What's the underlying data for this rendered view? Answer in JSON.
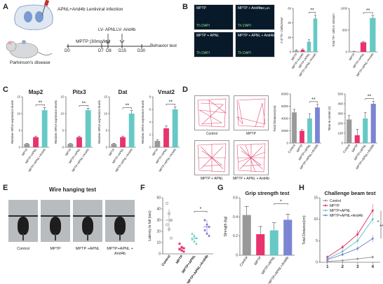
{
  "colors": {
    "control": "#999999",
    "mptp": "#e8336d",
    "apnl": "#66c9c5",
    "arid": "#7b85d4",
    "arid_point": "#8a72d0",
    "grid": "#dddddd"
  },
  "panelA": {
    "label": "A",
    "brain_text": "APNL+Arid4b Lentiviral infection",
    "dose": "MPTP (30mg/kg)",
    "lv_apnl": "LV- APNL",
    "lv_arid": "LV- Arid4b",
    "days": [
      "D0",
      "D7",
      "D8",
      "D15",
      "D30"
    ],
    "behavior": "Behavior test",
    "disease": "Parkinson's disease"
  },
  "panelB": {
    "label": "B",
    "images": [
      {
        "caption": "MPTP",
        "sub": "Th DAPI"
      },
      {
        "caption": "MPTP + Arid4b",
        "sub": "Th DAPI"
      },
      {
        "caption": "MPTP + APNL",
        "sub": "Th DAPI"
      },
      {
        "caption": "MPTP + APNL + Arid4b",
        "sub": "Th DAPI"
      }
    ],
    "scale": "50 μm"
  },
  "panelC": {
    "label": "C"
  },
  "panelD": {
    "label": "D",
    "tracks": [
      "Control",
      "MPTP",
      "MPTP + APNL",
      "MPTP + APNL + Arid4b"
    ]
  },
  "panelE": {
    "label": "E",
    "title": "Wire hanging test",
    "groups": [
      "Control",
      "MPTP",
      "MPTP +APNL",
      "MPTP+APNL + Arid4b"
    ]
  },
  "panelF": {
    "label": "F"
  },
  "panelG": {
    "label": "G"
  },
  "panelH": {
    "label": "H"
  },
  "chart_data": [
    {
      "id": "B1",
      "type": "bar",
      "ylabel": "# of Th+ Cells/Area²",
      "categories": [
        "MPTP",
        "MPTP+Arid4b",
        "MPTP+APNL",
        "MPTP+APNL+Arid4b"
      ],
      "values": [
        2,
        3,
        14,
        46
      ],
      "errors": [
        1,
        1,
        3,
        5
      ],
      "ylim": [
        0,
        60
      ],
      "yticks": [
        0,
        20,
        40,
        60
      ],
      "colors": [
        "#999999",
        "#e8336d",
        "#66c9c5",
        "#66c9c5"
      ],
      "sig": "**"
    },
    {
      "id": "B2",
      "type": "bar",
      "ylabel": "Total Th+ cells in striatum",
      "categories": [
        "MPTP",
        "MPTP+APNL",
        "MPTP+APNL+Arid4b"
      ],
      "values": [
        10,
        220,
        780
      ],
      "errors": [
        5,
        20,
        60
      ],
      "ylim": [
        0,
        1000
      ],
      "yticks": [
        0,
        500,
        1000
      ],
      "colors": [
        "#999999",
        "#e8336d",
        "#66c9c5"
      ],
      "sig": "**"
    },
    {
      "id": "C1",
      "type": "bar",
      "title": "Map2",
      "ylabel": "Relative mRNA expression levels",
      "categories": [
        "MPTP",
        "MPTP+APNL",
        "MPTP+APNL+Arid4b"
      ],
      "values": [
        1,
        3,
        11
      ],
      "errors": [
        0.2,
        0.3,
        0.8
      ],
      "ylim": [
        0,
        15
      ],
      "yticks": [
        0,
        5,
        10,
        15
      ],
      "colors": [
        "#999999",
        "#e8336d",
        "#66c9c5"
      ],
      "sig": "**"
    },
    {
      "id": "C2",
      "type": "bar",
      "title": "Pitx3",
      "ylabel": "Relative mRNA expression levels",
      "categories": [
        "MPTP",
        "MPTP+APNL",
        "MPTP+APNL+Arid4b"
      ],
      "values": [
        1,
        3,
        11
      ],
      "errors": [
        0.2,
        0.3,
        0.6
      ],
      "ylim": [
        0,
        15
      ],
      "yticks": [
        0,
        5,
        10,
        15
      ],
      "colors": [
        "#999999",
        "#e8336d",
        "#66c9c5"
      ],
      "sig": "**"
    },
    {
      "id": "C3",
      "type": "bar",
      "title": "Dat",
      "ylabel": "Relative mRNA expression levels",
      "categories": [
        "MPTP",
        "MPTP+APNL",
        "MPTP+APNL+Arid4b"
      ],
      "values": [
        1,
        3,
        10
      ],
      "errors": [
        0.2,
        0.3,
        0.9
      ],
      "ylim": [
        0,
        15
      ],
      "yticks": [
        0,
        5,
        10,
        15
      ],
      "colors": [
        "#999999",
        "#e8336d",
        "#66c9c5"
      ],
      "sig": "**"
    },
    {
      "id": "C4",
      "type": "bar",
      "title": "Vmat2",
      "ylabel": "Relative mRNA expression levels",
      "categories": [
        "MPTP",
        "MPTP+APNL",
        "MPTP+APNL+Arid4b"
      ],
      "values": [
        1,
        3,
        6
      ],
      "errors": [
        0.2,
        0.4,
        0.4
      ],
      "ylim": [
        0,
        8
      ],
      "yticks": [
        0,
        2,
        4,
        6,
        8
      ],
      "colors": [
        "#999999",
        "#e8336d",
        "#66c9c5"
      ],
      "sig": "**"
    },
    {
      "id": "D1",
      "type": "bar",
      "ylabel": "Total Distance(cm)",
      "categories": [
        "Control",
        "MPTP",
        "MPTP+APNL",
        "MPTP+APNL+Arid4b"
      ],
      "values": [
        5000,
        2000,
        4000,
        5800
      ],
      "errors": [
        500,
        200,
        800,
        500
      ],
      "ylim": [
        0,
        8000
      ],
      "yticks": [
        0,
        2000,
        4000,
        6000,
        8000
      ],
      "colors": [
        "#999999",
        "#e8336d",
        "#66c9c5",
        "#7b85d4"
      ],
      "sig": "**"
    },
    {
      "id": "D2",
      "type": "bar",
      "ylabel": "Time in center (s)",
      "categories": [
        "Control",
        "MPTP",
        "MPTP+APNL",
        "MPTP+APNL+Arid4b"
      ],
      "values": [
        240,
        80,
        250,
        400
      ],
      "errors": [
        40,
        60,
        60,
        25
      ],
      "ylim": [
        0,
        500
      ],
      "yticks": [
        0,
        100,
        200,
        300,
        400,
        500
      ],
      "colors": [
        "#999999",
        "#e8336d",
        "#66c9c5",
        "#7b85d4"
      ],
      "sig": "**"
    },
    {
      "id": "F",
      "type": "scatter",
      "ylabel": "Latency to fall (sec)",
      "categories": [
        "Control",
        "MPTP",
        "MPTP+APNL",
        "MPTP+APNL+Arid4b"
      ],
      "points": [
        [
          45,
          36,
          30,
          26,
          22,
          14
        ],
        [
          9,
          6,
          5,
          4,
          3,
          2
        ],
        [
          18,
          16,
          14,
          13,
          11,
          9
        ],
        [
          30,
          26,
          24,
          21,
          18,
          16
        ]
      ],
      "means": [
        30,
        5,
        14,
        24
      ],
      "errors": [
        10,
        2,
        4,
        6
      ],
      "ylim": [
        0,
        50
      ],
      "yticks": [
        0,
        10,
        20,
        30,
        40,
        50
      ],
      "colors": [
        "#999999",
        "#e8336d",
        "#66c9c5",
        "#8a72d0"
      ],
      "sig": "*"
    },
    {
      "id": "G",
      "type": "bar",
      "title": "Grip strength test",
      "ylabel": "Strength (kg)",
      "categories": [
        "Control",
        "MPTP",
        "MPTP+APNL",
        "MPTP+APNL+Arid4b"
      ],
      "values": [
        0.42,
        0.22,
        0.26,
        0.37
      ],
      "errors": [
        0.09,
        0.08,
        0.08,
        0.06
      ],
      "ylim": [
        0,
        0.6
      ],
      "yticks": [
        0,
        0.2,
        0.4,
        0.6
      ],
      "colors": [
        "#999999",
        "#e8336d",
        "#66c9c5",
        "#7b85d4"
      ],
      "sig": "*"
    },
    {
      "id": "H",
      "type": "line",
      "title": "Challenge beam test",
      "ylabel": "Total Distance(cm)",
      "x": [
        1,
        2,
        3,
        4
      ],
      "xticks": [
        1,
        2,
        3,
        4
      ],
      "ylim": [
        0,
        15
      ],
      "yticks": [
        0,
        5,
        10,
        15
      ],
      "series": [
        {
          "name": "Control",
          "values": [
            0.2,
            0.4,
            0.8,
            1.2
          ],
          "errors": [
            0.2,
            0.2,
            0.3,
            0.4
          ],
          "color": "#999999"
        },
        {
          "name": "MPTP",
          "values": [
            1.2,
            3.5,
            6.5,
            12
          ],
          "errors": [
            0.4,
            0.6,
            1,
            1.5
          ],
          "color": "#e8336d"
        },
        {
          "name": "MPTP+APNL",
          "values": [
            0.8,
            2.5,
            5,
            10
          ],
          "errors": [
            0.3,
            0.5,
            0.8,
            1.2
          ],
          "color": "#66c9c5"
        },
        {
          "name": "MPTP+APNL+Arid4b",
          "values": [
            0.6,
            1.8,
            3.2,
            5.5
          ],
          "errors": [
            0.3,
            0.4,
            0.6,
            0.8
          ],
          "color": "#7b85d4"
        }
      ],
      "sig": [
        "*",
        "**"
      ],
      "legend": "top-left"
    }
  ]
}
